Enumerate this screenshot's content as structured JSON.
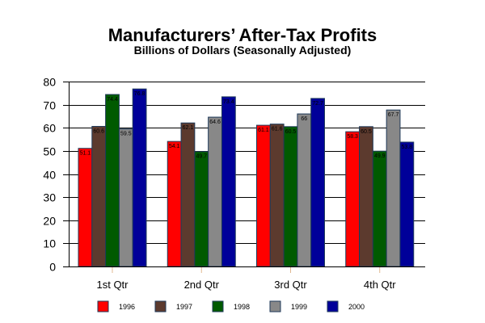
{
  "chart_data": {
    "type": "bar",
    "title": "Manufacturers’ After-Tax Profits",
    "subtitle": "Billions of Dollars (Seasonally Adjusted)",
    "xlabel": "",
    "ylabel": "",
    "ylim": [
      0,
      80
    ],
    "yticks": [
      0,
      10,
      20,
      30,
      40,
      50,
      60,
      70,
      80
    ],
    "grid": true,
    "legend_position": "bottom",
    "categories": [
      "1st Qtr",
      "2nd Qtr",
      "3rd Qtr",
      "4th Qtr"
    ],
    "series": [
      {
        "name": "1996",
        "color": "#ff0000",
        "values": [
          51.1,
          54.1,
          61.1,
          58.3
        ],
        "labels": [
          "51.1",
          "54.1",
          "61.1",
          "58.3"
        ]
      },
      {
        "name": "1997",
        "color": "#5c3a2e",
        "values": [
          60.6,
          62.1,
          61.6,
          60.5
        ],
        "labels": [
          "60.6",
          "62.1",
          "61.6",
          "60.5"
        ]
      },
      {
        "name": "1998",
        "color": "#005a00",
        "values": [
          74.4,
          49.7,
          60.5,
          49.9
        ],
        "labels": [
          "74.4",
          "49.7",
          "60.5",
          "49.9"
        ]
      },
      {
        "name": "1999",
        "color": "#888888",
        "values": [
          59.5,
          64.6,
          66.0,
          67.7
        ],
        "labels": [
          "59.5",
          "64.6",
          "66",
          "67.7"
        ]
      },
      {
        "name": "2000",
        "color": "#000099",
        "values": [
          76.8,
          73.4,
          72.7,
          53.8
        ],
        "labels": [
          "76.8",
          "73.4",
          "72.7",
          "53.8"
        ]
      }
    ]
  }
}
